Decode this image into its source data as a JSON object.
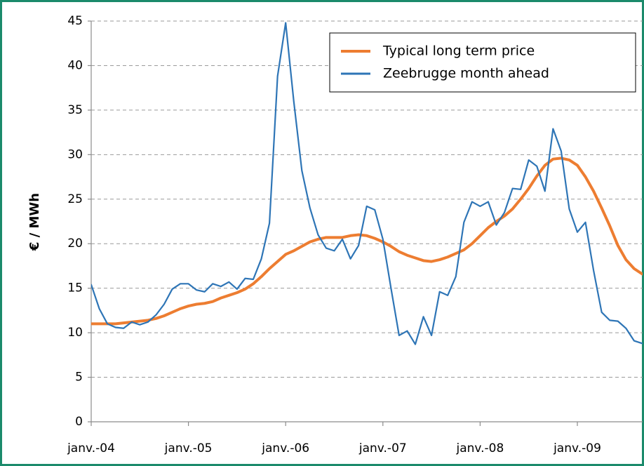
{
  "chart_data": {
    "type": "line",
    "y_label": "€ / MWh",
    "categories": [
      "janv.-04",
      null,
      null,
      null,
      null,
      null,
      null,
      null,
      null,
      null,
      null,
      null,
      "janv.-05",
      null,
      null,
      null,
      null,
      null,
      null,
      null,
      null,
      null,
      null,
      null,
      "janv.-06",
      null,
      null,
      null,
      null,
      null,
      null,
      null,
      null,
      null,
      null,
      null,
      "janv.-07",
      null,
      null,
      null,
      null,
      null,
      null,
      null,
      null,
      null,
      null,
      null,
      "janv.-08",
      null,
      null,
      null,
      null,
      null,
      null,
      null,
      null,
      null,
      null,
      null,
      "janv.-09",
      null,
      null,
      null,
      null,
      null,
      null,
      null,
      null
    ],
    "series": [
      {
        "name": "Typical long term price",
        "color": "#ed7d31",
        "values": [
          11.0,
          11.0,
          11.0,
          11.0,
          11.1,
          11.2,
          11.3,
          11.4,
          11.6,
          11.9,
          12.3,
          12.7,
          13.0,
          13.2,
          13.3,
          13.5,
          13.9,
          14.2,
          14.5,
          14.9,
          15.5,
          16.3,
          17.2,
          18.0,
          18.8,
          19.2,
          19.7,
          20.2,
          20.5,
          20.7,
          20.7,
          20.7,
          20.9,
          21.0,
          20.9,
          20.6,
          20.2,
          19.7,
          19.1,
          18.7,
          18.4,
          18.1,
          18.0,
          18.2,
          18.5,
          18.9,
          19.3,
          20.0,
          20.9,
          21.8,
          22.5,
          23.1,
          23.9,
          25.0,
          26.2,
          27.6,
          28.8,
          29.5,
          29.6,
          29.4,
          28.8,
          27.5,
          25.9,
          24.0,
          22.0,
          19.8,
          18.2,
          17.2,
          16.6
        ]
      },
      {
        "name": "Zeebrugge month ahead",
        "color": "#2e75b6",
        "values": [
          15.4,
          12.7,
          11.0,
          10.6,
          10.5,
          11.2,
          10.9,
          11.2,
          12.0,
          13.2,
          14.9,
          15.5,
          15.5,
          14.8,
          14.6,
          15.5,
          15.2,
          15.7,
          14.9,
          16.1,
          16.0,
          18.3,
          22.3,
          38.8,
          44.8,
          36.0,
          28.2,
          24.0,
          21.0,
          19.5,
          19.2,
          20.5,
          18.3,
          19.8,
          24.2,
          23.8,
          20.5,
          15.0,
          9.7,
          10.2,
          8.7,
          11.8,
          9.7,
          14.6,
          14.2,
          16.3,
          22.4,
          24.7,
          24.2,
          24.7,
          22.1,
          23.5,
          26.2,
          26.1,
          29.4,
          28.7,
          25.9,
          32.9,
          30.4,
          23.9,
          21.3,
          22.4,
          17.0,
          12.3,
          11.4,
          11.3,
          10.5,
          9.1,
          8.8
        ]
      }
    ],
    "ylim": [
      0,
      45
    ],
    "yticks": [
      0,
      5,
      10,
      15,
      20,
      25,
      30,
      35,
      40,
      45
    ],
    "grid": true,
    "legend": "top-right"
  }
}
